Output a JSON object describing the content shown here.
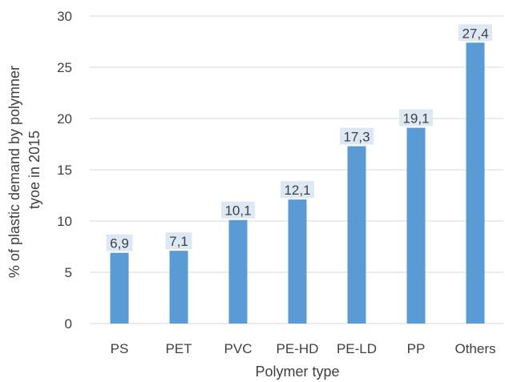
{
  "chart_data": {
    "type": "bar",
    "categories": [
      "PS",
      "PET",
      "PVC",
      "PE-HD",
      "PE-LD",
      "PP",
      "Others"
    ],
    "values": [
      6.9,
      7.1,
      10.1,
      12.1,
      17.3,
      19.1,
      27.4
    ],
    "data_labels": [
      "6,9",
      "7,1",
      "10,1",
      "12,1",
      "17,3",
      "19,1",
      "27,4"
    ],
    "xlabel": "Polymer type",
    "ylabel_lines": [
      "% of plastic demand by polymner",
      "tyoe in 2015"
    ],
    "ylim": [
      0,
      30
    ],
    "yticks": [
      0,
      5,
      10,
      15,
      20,
      25,
      30
    ],
    "grid": true,
    "legend": "none",
    "bar_color": "#5b9bd5",
    "label_bg_color": "#dde8f5",
    "grid_color": "#d9d9d9"
  }
}
